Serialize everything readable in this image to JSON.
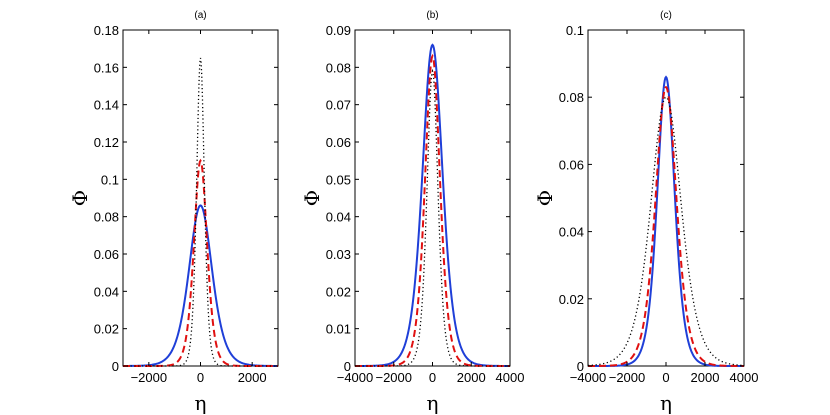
{
  "chart_data": [
    {
      "type": "line",
      "title": "(a)",
      "xlabel": "η",
      "ylabel": "Φ",
      "xlim": [
        -3000,
        3000
      ],
      "ylim": [
        0,
        0.18
      ],
      "xticks": [
        -2000,
        0,
        2000
      ],
      "xtick_labels": [
        "−2000",
        "0",
        "2000"
      ],
      "yticks": [
        0,
        0.02,
        0.04,
        0.06,
        0.08,
        0.1,
        0.12,
        0.14,
        0.16,
        0.18
      ],
      "ytick_labels": [
        "0",
        "0.02",
        "0.04",
        "0.06",
        "0.08",
        "0.1",
        "0.12",
        "0.14",
        "0.16",
        "0.18"
      ],
      "series": [
        {
          "name": "solid",
          "color": "#1f3fd8",
          "style": "solid",
          "peak": 0.086,
          "width": 600
        },
        {
          "name": "dashed",
          "color": "#e01010",
          "style": "dashed",
          "peak": 0.11,
          "width": 340
        },
        {
          "name": "dotted",
          "color": "#000000",
          "style": "dotted",
          "peak": 0.165,
          "width": 200
        }
      ]
    },
    {
      "type": "line",
      "title": "(b)",
      "xlabel": "η",
      "ylabel": "Φ",
      "xlim": [
        -4000,
        4000
      ],
      "ylim": [
        0,
        0.09
      ],
      "xticks": [
        -4000,
        -2000,
        0,
        2000,
        4000
      ],
      "xtick_labels": [
        "−4000",
        "−2000",
        "0",
        "2000",
        "4000"
      ],
      "yticks": [
        0,
        0.01,
        0.02,
        0.03,
        0.04,
        0.05,
        0.06,
        0.07,
        0.08,
        0.09
      ],
      "ytick_labels": [
        "0",
        "0.01",
        "0.02",
        "0.03",
        "0.04",
        "0.05",
        "0.06",
        "0.07",
        "0.08",
        "0.09"
      ],
      "series": [
        {
          "name": "solid",
          "color": "#1f3fd8",
          "style": "solid",
          "peak": 0.086,
          "width": 700
        },
        {
          "name": "dashed",
          "color": "#e01010",
          "style": "dashed",
          "peak": 0.083,
          "width": 520
        },
        {
          "name": "dotted",
          "color": "#000000",
          "style": "dotted",
          "peak": 0.079,
          "width": 380
        }
      ]
    },
    {
      "type": "line",
      "title": "(c)",
      "xlabel": "η",
      "ylabel": "Φ",
      "xlim": [
        -4000,
        4000
      ],
      "ylim": [
        0,
        0.1
      ],
      "xticks": [
        -4000,
        -2000,
        0,
        2000,
        4000
      ],
      "xtick_labels": [
        "−4000",
        "−2000",
        "0",
        "2000",
        "4000"
      ],
      "yticks": [
        0,
        0.02,
        0.04,
        0.06,
        0.08,
        0.1
      ],
      "ytick_labels": [
        "0",
        "0.02",
        "0.04",
        "0.06",
        "0.08",
        "0.1"
      ],
      "series": [
        {
          "name": "solid",
          "color": "#1f3fd8",
          "style": "solid",
          "peak": 0.086,
          "width": 600
        },
        {
          "name": "dashed",
          "color": "#e01010",
          "style": "dashed",
          "peak": 0.083,
          "width": 720
        },
        {
          "name": "dotted",
          "color": "#000000",
          "style": "dotted",
          "peak": 0.08,
          "width": 1050
        }
      ]
    }
  ]
}
